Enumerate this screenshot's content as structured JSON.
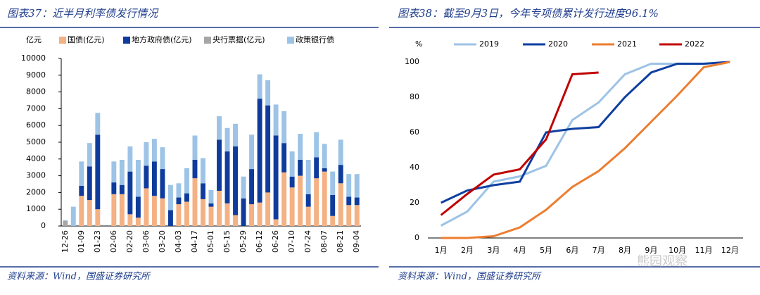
{
  "chart_data": [
    {
      "type": "bar",
      "stacked": true,
      "title": "图表37：近半月利率债发行情况",
      "y_label": "亿元",
      "source": "资料来源：Wind，国盛证券研究所",
      "categories": [
        "12-26",
        null,
        "01-09",
        null,
        "01-23",
        null,
        "02-06",
        null,
        "02-20",
        null,
        "03-06",
        null,
        "03-20",
        null,
        "04-03",
        null,
        "04-17",
        null,
        "05-01",
        null,
        "05-15",
        null,
        "05-29",
        null,
        "06-12",
        null,
        "06-26",
        null,
        "07-10",
        null,
        "07-24",
        null,
        "08-07",
        null,
        "08-21",
        null,
        "09-04"
      ],
      "series": [
        {
          "name": "国债(亿元)",
          "color": "#f4b183",
          "values": [
            0,
            0,
            1800,
            1550,
            1000,
            0,
            1900,
            1900,
            700,
            500,
            2250,
            1800,
            1650,
            0,
            1300,
            1450,
            2850,
            1600,
            1150,
            2100,
            1350,
            650,
            0,
            1300,
            1400,
            2000,
            400,
            3200,
            2300,
            3000,
            1150,
            2850,
            3250,
            600,
            2550,
            1250,
            1250
          ]
        },
        {
          "name": "地方政府债(亿元)",
          "color": "#0f3c9c",
          "values": [
            0,
            0,
            600,
            2000,
            4450,
            0,
            700,
            550,
            2550,
            1250,
            1350,
            2050,
            1750,
            950,
            400,
            500,
            1100,
            950,
            200,
            3050,
            3100,
            4100,
            1650,
            2100,
            6200,
            5200,
            5000,
            1750,
            650,
            950,
            750,
            1250,
            200,
            1250,
            1100,
            500,
            450
          ]
        },
        {
          "name": "央行票据(亿元)",
          "color": "#a6a6a6",
          "values": [
            300,
            0,
            0,
            0,
            0,
            0,
            0,
            0,
            0,
            0,
            0,
            0,
            0,
            0,
            0,
            0,
            0,
            0,
            0,
            0,
            0,
            0,
            0,
            0,
            0,
            0,
            0,
            0,
            0,
            0,
            0,
            0,
            0,
            0,
            0,
            0,
            0
          ]
        },
        {
          "name": "政策银行债",
          "color": "#9dc3e6",
          "values": [
            50,
            1150,
            1450,
            1400,
            1300,
            0,
            1250,
            1500,
            1500,
            2200,
            1400,
            1350,
            1300,
            1500,
            850,
            1500,
            1450,
            1500,
            800,
            1400,
            1400,
            1350,
            1300,
            2050,
            1450,
            1500,
            1850,
            1900,
            1500,
            1550,
            2050,
            1500,
            1450,
            1400,
            1500,
            1350,
            1400
          ]
        }
      ],
      "ylim": [
        0,
        10000
      ],
      "yticks": [
        0,
        1000,
        2000,
        3000,
        4000,
        5000,
        6000,
        7000,
        8000,
        9000,
        10000
      ],
      "grid": false
    },
    {
      "type": "line",
      "title": "图表38：截至9月3日，今年专项债累计发行进度96.1%",
      "y_label": "%",
      "source": "资料来源：Wind，国盛证券研究所",
      "categories": [
        "1月",
        "2月",
        "3月",
        "4月",
        "5月",
        "6月",
        "7月",
        "8月",
        "9月",
        "10月",
        "11月",
        "12月"
      ],
      "series": [
        {
          "name": "2019",
          "color": "#9dc3e6",
          "values": [
            7,
            15,
            32,
            35,
            41,
            67,
            77,
            93,
            99,
            99,
            99,
            100
          ]
        },
        {
          "name": "2020",
          "color": "#0e3fa0",
          "values": [
            20,
            27,
            30,
            32,
            60,
            62,
            63,
            80,
            94,
            99,
            99,
            100
          ]
        },
        {
          "name": "2021",
          "color": "#ed7d31",
          "values": [
            0,
            0,
            1,
            6,
            16,
            29,
            38,
            51,
            66,
            81,
            97,
            100
          ]
        },
        {
          "name": "2022",
          "color": "#c00000",
          "values": [
            13,
            25,
            36,
            39,
            56,
            93,
            94,
            null,
            null,
            null,
            null,
            null
          ]
        }
      ],
      "ylim": [
        0,
        100
      ],
      "yticks": [
        0,
        20,
        40,
        60,
        80,
        100
      ],
      "grid": false
    }
  ],
  "watermark": "熊园观察"
}
